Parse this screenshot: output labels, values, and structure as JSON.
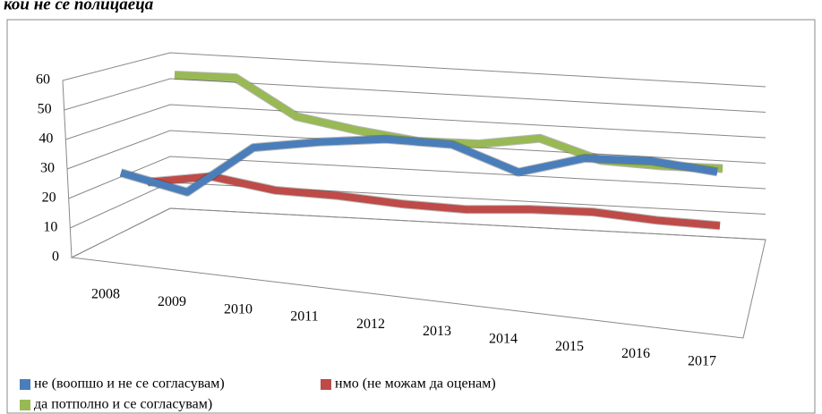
{
  "chart_data": {
    "type": "line",
    "title": "кои не се полицаеца",
    "categories": [
      "2008",
      "2009",
      "2010",
      "2011",
      "2012",
      "2013",
      "2014",
      "2015",
      "2016",
      "2017"
    ],
    "series": [
      {
        "name": "не (воопшо и не се согласувам)",
        "color": "#4a7ebb",
        "values": [
          28,
          22,
          39,
          42,
          44,
          43,
          34,
          40,
          40,
          37
        ]
      },
      {
        "name": "нмо (не можам да оценам)",
        "color": "#be4b48",
        "values": [
          23,
          26,
          22,
          21,
          19,
          18,
          19,
          19,
          17,
          16
        ]
      },
      {
        "name": "да потполно и се согласувам)",
        "color": "#98b954",
        "values": [
          60,
          60,
          47,
          43,
          40,
          40,
          43,
          36,
          35,
          35
        ]
      }
    ],
    "ylim": [
      0,
      60
    ],
    "yticks": [
      0,
      10,
      20,
      30,
      40,
      50,
      60
    ],
    "grid": true,
    "legend": "bottom"
  }
}
